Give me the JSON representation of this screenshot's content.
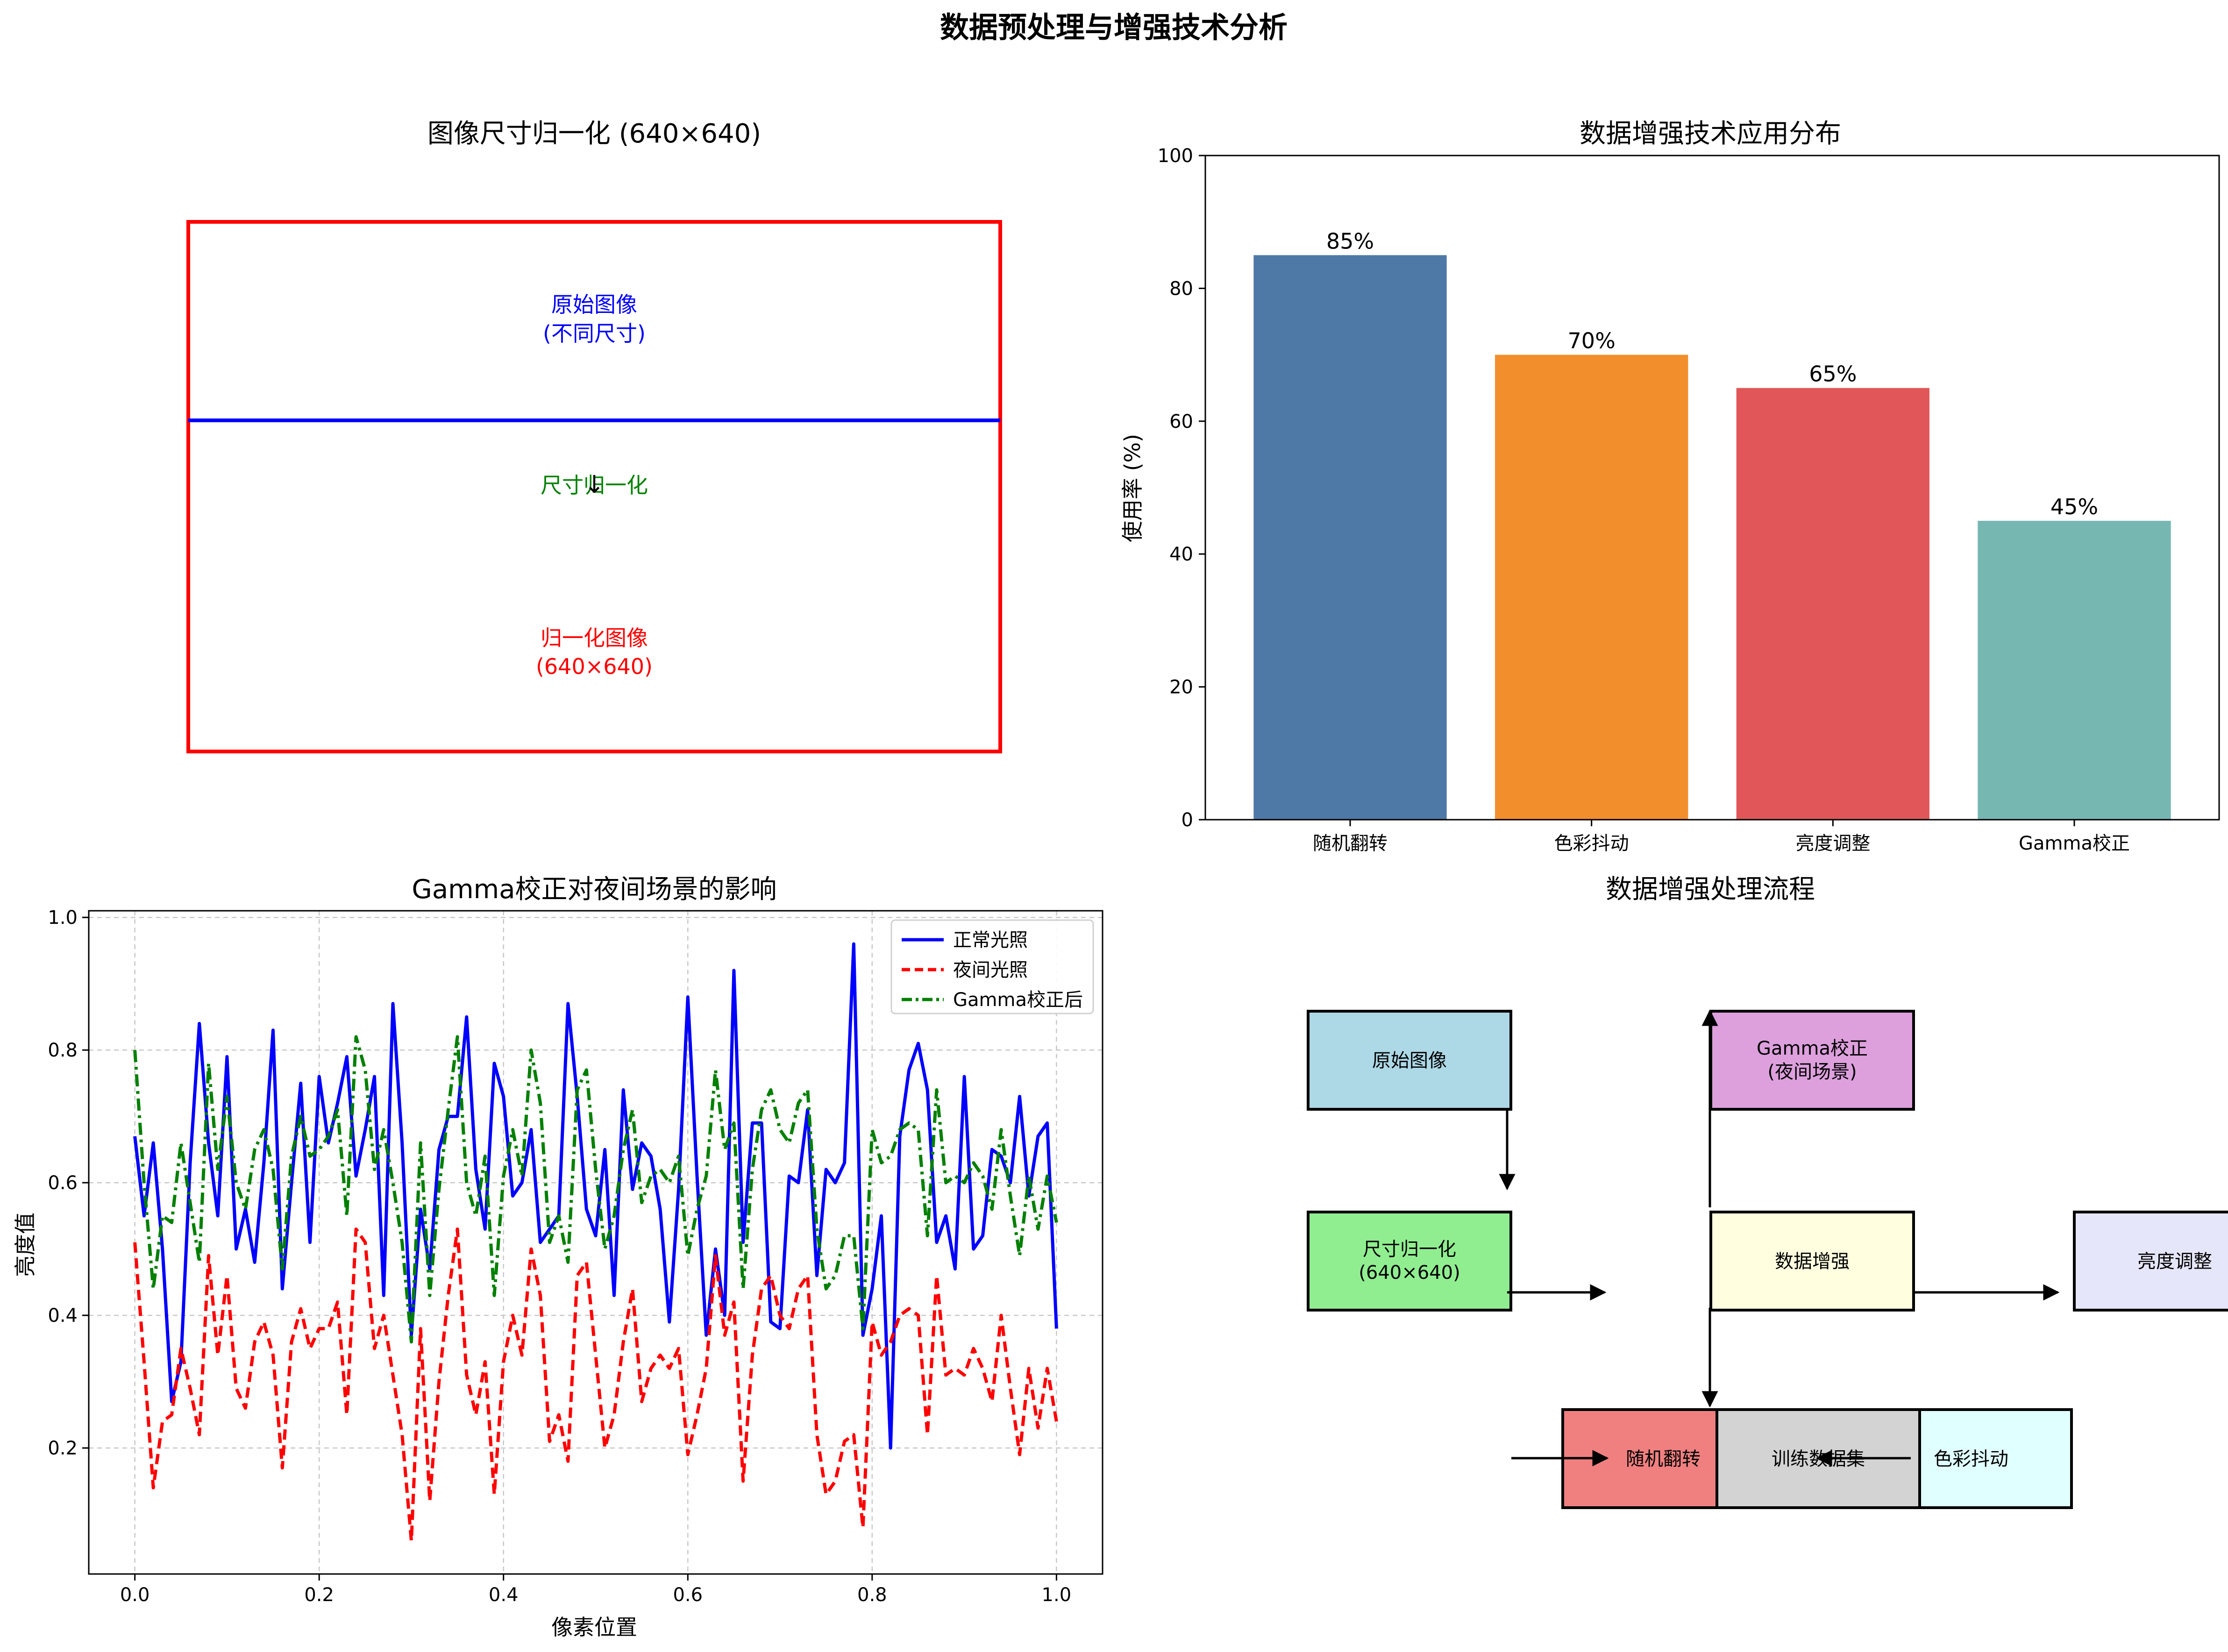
{
  "figure": {
    "title": "数据预处理与增强技术分析"
  },
  "resize_panel": {
    "title": "图像尺寸归一化 (640×640)",
    "original_label_line1": "原始图像",
    "original_label_line2": "(不同尺寸)",
    "arrow_glyph": "↓",
    "middle_label": "尺寸归一化",
    "normalized_label_line1": "归一化图像",
    "normalized_label_line2": "(640×640)",
    "colors": {
      "outer_box": "#ff0000",
      "divider": "#0000ff",
      "original_text": "#0000ff",
      "middle_text": "#008000",
      "normalized_text": "#ff0000"
    }
  },
  "flow_panel": {
    "title": "数据增强处理流程",
    "nodes": [
      {
        "id": "original",
        "line1": "原始图像",
        "line2": "",
        "color": "#add8e6"
      },
      {
        "id": "resize",
        "line1": "尺寸归一化",
        "line2": "(640×640)",
        "color": "#90ee90"
      },
      {
        "id": "augment",
        "line1": "数据增强",
        "line2": "",
        "color": "#ffffe0"
      },
      {
        "id": "gamma",
        "line1": "Gamma校正",
        "line2": "(夜间场景)",
        "color": "#dda0dd"
      },
      {
        "id": "brightness",
        "line1": "亮度调整",
        "line2": "",
        "color": "#e6e6fa"
      },
      {
        "id": "flip",
        "line1": "随机翻转",
        "line2": "",
        "color": "#f08080"
      },
      {
        "id": "dataset",
        "line1": "训练数据集",
        "line2": "",
        "color": "#d3d3d3"
      },
      {
        "id": "jitter",
        "line1": "色彩抖动",
        "line2": "",
        "color": "#e0ffff"
      }
    ]
  },
  "chart_data": [
    {
      "type": "bar",
      "title": "数据增强技术应用分布",
      "categories": [
        "随机翻转",
        "色彩抖动",
        "亮度调整",
        "Gamma校正"
      ],
      "values": [
        85,
        70,
        65,
        45
      ],
      "value_labels": [
        "85%",
        "70%",
        "65%",
        "45%"
      ],
      "colors": [
        "#4e79a7",
        "#f28e2b",
        "#e15759",
        "#76b7b2"
      ],
      "xlabel": "",
      "ylabel": "使用率 (%)",
      "ylim": [
        0,
        100
      ],
      "yticks": [
        0,
        20,
        40,
        60,
        80,
        100
      ],
      "grid": false
    },
    {
      "type": "line",
      "title": "Gamma校正对夜间场景的影响",
      "xlabel": "像素位置",
      "ylabel": "亮度值",
      "xlim": [
        -0.05,
        1.05
      ],
      "ylim": [
        0.01,
        1.01
      ],
      "xticks": [
        0.0,
        0.2,
        0.4,
        0.6,
        0.8,
        1.0
      ],
      "yticks": [
        0.2,
        0.4,
        0.6,
        0.8,
        1.0
      ],
      "grid": true,
      "legend": "top-right",
      "x_range": [
        0,
        1
      ],
      "series": [
        {
          "name": "正常光照",
          "color": "#0000ff",
          "style": "solid",
          "values": [
            0.67,
            0.55,
            0.66,
            0.5,
            0.27,
            0.33,
            0.63,
            0.84,
            0.66,
            0.55,
            0.79,
            0.5,
            0.56,
            0.48,
            0.63,
            0.83,
            0.44,
            0.6,
            0.75,
            0.51,
            0.76,
            0.66,
            0.72,
            0.79,
            0.61,
            0.68,
            0.76,
            0.43,
            0.87,
            0.66,
            0.37,
            0.56,
            0.47,
            0.65,
            0.7,
            0.7,
            0.85,
            0.62,
            0.53,
            0.78,
            0.73,
            0.58,
            0.6,
            0.68,
            0.51,
            0.53,
            0.55,
            0.87,
            0.73,
            0.56,
            0.52,
            0.65,
            0.43,
            0.74,
            0.59,
            0.66,
            0.64,
            0.56,
            0.39,
            0.59,
            0.88,
            0.61,
            0.37,
            0.5,
            0.4,
            0.92,
            0.51,
            0.69,
            0.69,
            0.39,
            0.38,
            0.61,
            0.6,
            0.71,
            0.46,
            0.62,
            0.6,
            0.63,
            0.96,
            0.37,
            0.44,
            0.55,
            0.2,
            0.67,
            0.77,
            0.81,
            0.74,
            0.51,
            0.55,
            0.47,
            0.76,
            0.5,
            0.52,
            0.65,
            0.64,
            0.6,
            0.73,
            0.58,
            0.67,
            0.69,
            0.38
          ]
        },
        {
          "name": "夜间光照",
          "color": "#ff0000",
          "style": "dashed",
          "values": [
            0.51,
            0.33,
            0.14,
            0.24,
            0.25,
            0.35,
            0.29,
            0.22,
            0.49,
            0.34,
            0.46,
            0.29,
            0.26,
            0.36,
            0.39,
            0.34,
            0.17,
            0.36,
            0.41,
            0.35,
            0.38,
            0.38,
            0.42,
            0.25,
            0.53,
            0.51,
            0.35,
            0.4,
            0.31,
            0.22,
            0.06,
            0.38,
            0.12,
            0.3,
            0.43,
            0.53,
            0.31,
            0.25,
            0.33,
            0.13,
            0.33,
            0.4,
            0.34,
            0.5,
            0.43,
            0.21,
            0.25,
            0.18,
            0.46,
            0.48,
            0.34,
            0.2,
            0.25,
            0.36,
            0.44,
            0.27,
            0.32,
            0.34,
            0.32,
            0.35,
            0.19,
            0.25,
            0.32,
            0.49,
            0.37,
            0.42,
            0.15,
            0.34,
            0.44,
            0.46,
            0.4,
            0.38,
            0.44,
            0.46,
            0.22,
            0.13,
            0.15,
            0.21,
            0.22,
            0.08,
            0.39,
            0.34,
            0.36,
            0.4,
            0.41,
            0.4,
            0.22,
            0.46,
            0.31,
            0.32,
            0.31,
            0.35,
            0.32,
            0.27,
            0.4,
            0.29,
            0.19,
            0.32,
            0.23,
            0.32,
            0.24
          ]
        },
        {
          "name": "Gamma校正后",
          "color": "#008000",
          "style": "dashdot",
          "values": [
            0.8,
            0.6,
            0.44,
            0.55,
            0.54,
            0.66,
            0.57,
            0.48,
            0.78,
            0.62,
            0.73,
            0.6,
            0.56,
            0.65,
            0.68,
            0.62,
            0.47,
            0.64,
            0.7,
            0.64,
            0.65,
            0.67,
            0.71,
            0.55,
            0.82,
            0.77,
            0.62,
            0.68,
            0.6,
            0.51,
            0.36,
            0.66,
            0.43,
            0.59,
            0.71,
            0.82,
            0.6,
            0.55,
            0.64,
            0.43,
            0.61,
            0.68,
            0.61,
            0.8,
            0.72,
            0.51,
            0.55,
            0.48,
            0.74,
            0.77,
            0.62,
            0.5,
            0.55,
            0.65,
            0.71,
            0.57,
            0.61,
            0.62,
            0.6,
            0.64,
            0.49,
            0.56,
            0.61,
            0.77,
            0.65,
            0.69,
            0.44,
            0.62,
            0.71,
            0.74,
            0.68,
            0.66,
            0.72,
            0.74,
            0.53,
            0.44,
            0.46,
            0.52,
            0.52,
            0.38,
            0.68,
            0.63,
            0.64,
            0.68,
            0.69,
            0.68,
            0.52,
            0.74,
            0.6,
            0.61,
            0.6,
            0.63,
            0.61,
            0.56,
            0.68,
            0.58,
            0.49,
            0.61,
            0.53,
            0.61,
            0.54
          ]
        }
      ]
    }
  ]
}
